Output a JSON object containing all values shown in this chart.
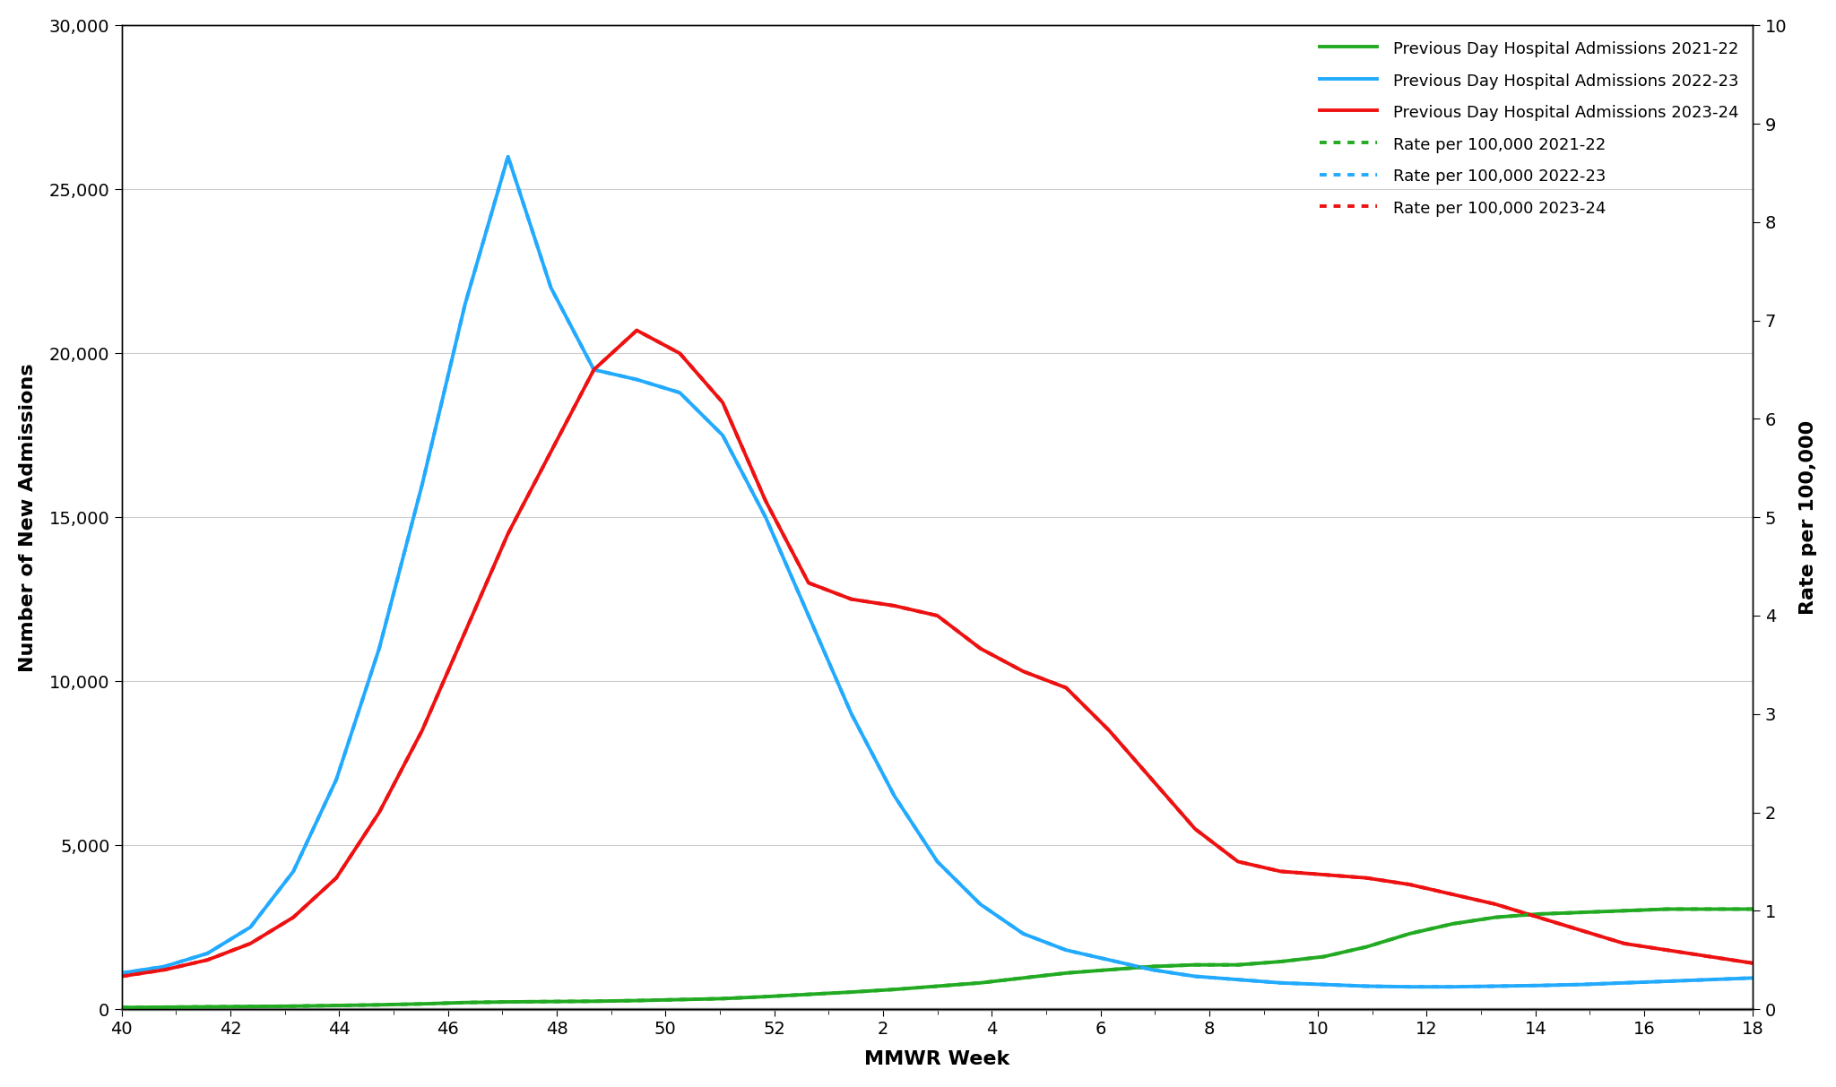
{
  "xlabel": "MMWR Week",
  "ylabel_left": "Number of New Admissions",
  "ylabel_right": "Rate per 100,000",
  "ylim_left": [
    0,
    30000
  ],
  "ylim_right": [
    0,
    10
  ],
  "yticks_left": [
    0,
    5000,
    10000,
    15000,
    20000,
    25000,
    30000
  ],
  "yticks_right": [
    0,
    1,
    2,
    3,
    4,
    5,
    6,
    7,
    8,
    9,
    10
  ],
  "xtick_labels": [
    "40",
    "42",
    "44",
    "46",
    "48",
    "50",
    "52",
    "2",
    "4",
    "6",
    "8",
    "10",
    "12",
    "14",
    "16",
    "18"
  ],
  "colors": {
    "green": "#22aa22",
    "blue": "#22aaff",
    "red": "#ee1111"
  },
  "admissions_2021_22": [
    50,
    60,
    70,
    80,
    90,
    110,
    130,
    160,
    200,
    220,
    230,
    240,
    260,
    290,
    320,
    380,
    450,
    520,
    600,
    700,
    800,
    950,
    1100,
    1200,
    1300,
    1350,
    1350,
    1450,
    1600,
    1900,
    2300,
    2600,
    2800,
    2900,
    2950,
    3000,
    3050,
    3050,
    3050
  ],
  "admissions_2022_23": [
    1100,
    1300,
    1700,
    2500,
    4200,
    7000,
    11000,
    16000,
    21500,
    26000,
    22000,
    19500,
    19200,
    18800,
    17500,
    15000,
    12000,
    9000,
    6500,
    4500,
    3200,
    2300,
    1800,
    1500,
    1200,
    1000,
    900,
    800,
    750,
    700,
    680,
    680,
    700,
    720,
    750,
    800,
    850,
    900,
    950
  ],
  "admissions_2023_24": [
    1000,
    1200,
    1500,
    2000,
    2800,
    4000,
    6000,
    8500,
    11500,
    14500,
    17000,
    19500,
    20700,
    20000,
    18500,
    15500,
    13000,
    12500,
    12300,
    12000,
    11000,
    10300,
    9800,
    8500,
    7000,
    5500,
    4500,
    4200,
    4100,
    4000,
    3800,
    3500,
    3200,
    2800,
    2400,
    2000,
    1800,
    1600,
    1400
  ],
  "rate_2021_22": [
    0.017,
    0.02,
    0.023,
    0.027,
    0.03,
    0.037,
    0.043,
    0.053,
    0.067,
    0.073,
    0.077,
    0.08,
    0.087,
    0.097,
    0.107,
    0.127,
    0.15,
    0.173,
    0.2,
    0.233,
    0.267,
    0.317,
    0.367,
    0.4,
    0.433,
    0.45,
    0.45,
    0.483,
    0.533,
    0.633,
    0.767,
    0.867,
    0.933,
    0.967,
    0.983,
    1.0,
    1.017,
    1.017,
    1.017
  ],
  "rate_2022_23": [
    0.367,
    0.433,
    0.567,
    0.833,
    1.4,
    2.333,
    3.667,
    5.333,
    7.167,
    8.667,
    7.333,
    6.5,
    6.4,
    6.267,
    5.833,
    5.0,
    4.0,
    3.0,
    2.167,
    1.5,
    1.067,
    0.767,
    0.6,
    0.5,
    0.4,
    0.333,
    0.3,
    0.267,
    0.25,
    0.233,
    0.227,
    0.227,
    0.233,
    0.24,
    0.25,
    0.267,
    0.283,
    0.3,
    0.317
  ],
  "rate_2023_24": [
    0.333,
    0.4,
    0.5,
    0.667,
    0.933,
    1.333,
    2.0,
    2.833,
    3.833,
    4.833,
    5.667,
    6.5,
    6.9,
    6.667,
    6.167,
    5.167,
    4.333,
    4.167,
    4.1,
    4.0,
    3.667,
    3.433,
    3.267,
    2.833,
    2.333,
    1.833,
    1.5,
    1.4,
    1.367,
    1.333,
    1.267,
    1.167,
    1.067,
    0.933,
    0.8,
    0.667,
    0.6,
    0.533,
    0.467
  ],
  "legend": [
    {
      "label": "Previous Day Hospital Admissions 2021-22",
      "color": "#22aa22",
      "linestyle": "solid"
    },
    {
      "label": "Previous Day Hospital Admissions 2022-23",
      "color": "#22aaff",
      "linestyle": "solid"
    },
    {
      "label": "Previous Day Hospital Admissions 2023-24",
      "color": "#ee1111",
      "linestyle": "solid"
    },
    {
      "label": "Rate per 100,000 2021-22",
      "color": "#22aa22",
      "linestyle": "dotted"
    },
    {
      "label": "Rate per 100,000 2022-23",
      "color": "#22aaff",
      "linestyle": "dotted"
    },
    {
      "label": "Rate per 100,000 2023-24",
      "color": "#ee1111",
      "linestyle": "dotted"
    }
  ]
}
